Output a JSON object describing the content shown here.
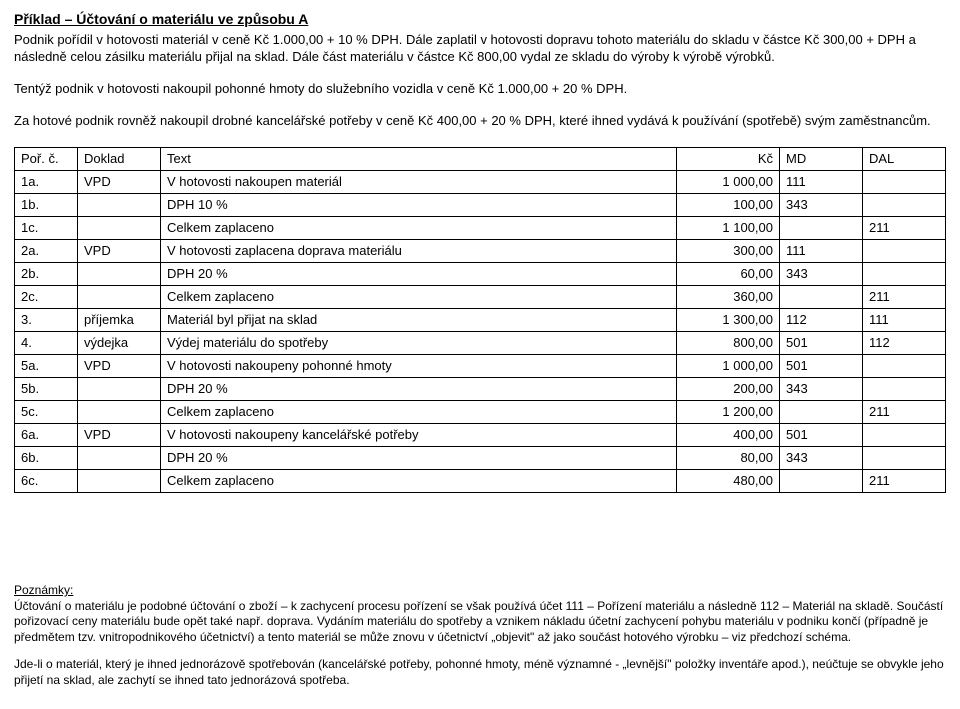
{
  "title": "Příklad – Účtování o materiálu ve způsobu A",
  "para1": "Podnik pořídil v hotovosti materiál v ceně Kč 1.000,00 + 10 % DPH. Dále zaplatil v hotovosti dopravu tohoto materiálu do skladu v částce Kč 300,00 + DPH a následně celou zásilku materiálu přijal na sklad. Dále část materiálu v částce Kč 800,00 vydal ze skladu do výroby k výrobě výrobků.",
  "para2": "Tentýž podnik v hotovosti nakoupil pohonné hmoty do služebního vozidla v ceně Kč 1.000,00 + 20 % DPH.",
  "para3": "Za hotové podnik rovněž nakoupil drobné kancelářské potřeby v ceně Kč 400,00 + 20 % DPH, které ihned vydává k používání (spotřebě) svým zaměstnancům.",
  "table": {
    "columns": [
      "Poř. č.",
      "Doklad",
      "Text",
      "Kč",
      "MD",
      "DAL"
    ],
    "rows": [
      [
        "1a.",
        "VPD",
        "V hotovosti nakoupen materiál",
        "1 000,00",
        "111",
        ""
      ],
      [
        "1b.",
        "",
        "DPH 10 %",
        "100,00",
        "343",
        ""
      ],
      [
        "1c.",
        "",
        "Celkem zaplaceno",
        "1 100,00",
        "",
        "211"
      ],
      [
        "2a.",
        "VPD",
        "V hotovosti zaplacena doprava materiálu",
        "300,00",
        "111",
        ""
      ],
      [
        "2b.",
        "",
        "DPH 20 %",
        "60,00",
        "343",
        ""
      ],
      [
        "2c.",
        "",
        "Celkem zaplaceno",
        "360,00",
        "",
        "211"
      ],
      [
        "3.",
        "příjemka",
        "Materiál byl přijat na sklad",
        "1 300,00",
        "112",
        "111"
      ],
      [
        "4.",
        "výdejka",
        "Výdej materiálu do spotřeby",
        "800,00",
        "501",
        "112"
      ],
      [
        "5a.",
        "VPD",
        "V hotovosti nakoupeny pohonné hmoty",
        "1 000,00",
        "501",
        ""
      ],
      [
        "5b.",
        "",
        "DPH 20 %",
        "200,00",
        "343",
        ""
      ],
      [
        "5c.",
        "",
        "Celkem zaplaceno",
        "1 200,00",
        "",
        "211"
      ],
      [
        "6a.",
        "VPD",
        "V hotovosti nakoupeny kancelářské potřeby",
        "400,00",
        "501",
        ""
      ],
      [
        "6b.",
        "",
        "DPH 20 %",
        "80,00",
        "343",
        ""
      ],
      [
        "6c.",
        "",
        "Celkem zaplaceno",
        "480,00",
        "",
        "211"
      ]
    ]
  },
  "notes_label": "Poznámky:",
  "notes_p1": "Účtování o materiálu je podobné účtování o zboží – k zachycení procesu pořízení se však používá účet 111 – Pořízení materiálu a následně 112 – Materiál na skladě. Součástí pořizovací ceny materiálu bude opět také např. doprava. Vydáním materiálu do spotřeby a vznikem nákladu účetní zachycení pohybu materiálu v podniku končí (případně je předmětem tzv. vnitropodnikového účetnictví) a tento materiál se může znovu v účetnictví „objevit\" až jako součást hotového výrobku – viz předchozí schéma.",
  "notes_p2": "Jde-li o materiál, který je ihned jednorázově spotřebován (kancelářské potřeby, pohonné hmoty, méně významné - „levnější\" položky inventáře apod.), neúčtuje se obvykle jeho přijetí na sklad, ale zachytí se ihned tato jednorázová spotřeba."
}
